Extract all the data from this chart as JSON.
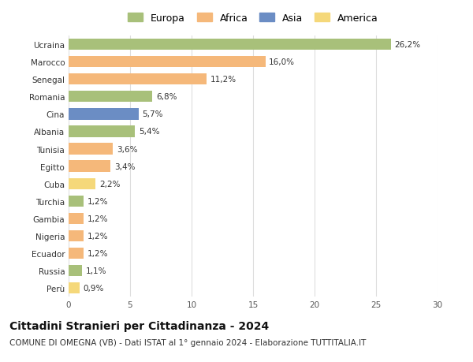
{
  "categories": [
    "Perù",
    "Russia",
    "Ecuador",
    "Nigeria",
    "Gambia",
    "Turchia",
    "Cuba",
    "Egitto",
    "Tunisia",
    "Albania",
    "Cina",
    "Romania",
    "Senegal",
    "Marocco",
    "Ucraina"
  ],
  "values": [
    0.9,
    1.1,
    1.2,
    1.2,
    1.2,
    1.2,
    2.2,
    3.4,
    3.6,
    5.4,
    5.7,
    6.8,
    11.2,
    16.0,
    26.2
  ],
  "bar_colors": [
    "#f5d87a",
    "#a8c07a",
    "#f5b87a",
    "#f5b87a",
    "#f5b87a",
    "#a8c07a",
    "#f5d87a",
    "#f5b87a",
    "#f5b87a",
    "#a8c07a",
    "#6b8dc4",
    "#a8c07a",
    "#f5b87a",
    "#f5b87a",
    "#a8c07a"
  ],
  "legend_labels": [
    "Europa",
    "Africa",
    "Asia",
    "America"
  ],
  "legend_colors": [
    "#a8c07a",
    "#f5b87a",
    "#6b8dc4",
    "#f5d87a"
  ],
  "title": "Cittadini Stranieri per Cittadinanza - 2024",
  "subtitle": "COMUNE DI OMEGNA (VB) - Dati ISTAT al 1° gennaio 2024 - Elaborazione TUTTITALIA.IT",
  "xlim": [
    0,
    30
  ],
  "xticks": [
    0,
    5,
    10,
    15,
    20,
    25,
    30
  ],
  "background_color": "#ffffff",
  "grid_color": "#dddddd",
  "bar_height": 0.65,
  "label_fontsize": 7.5,
  "tick_fontsize": 7.5,
  "title_fontsize": 10,
  "subtitle_fontsize": 7.5
}
